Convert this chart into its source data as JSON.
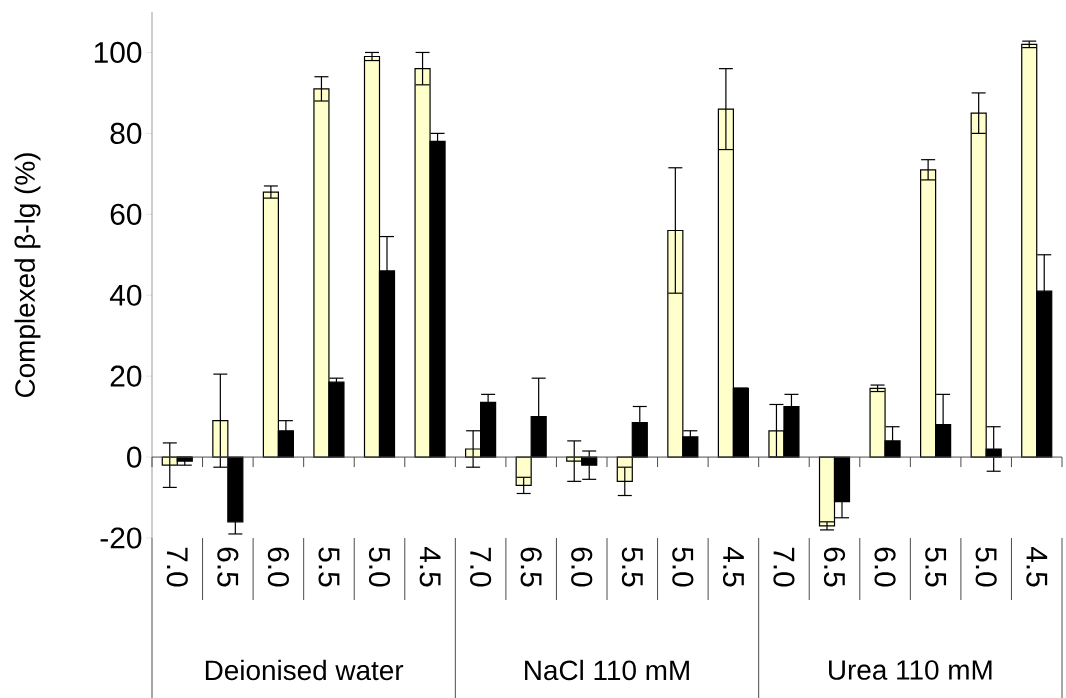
{
  "chart_data": {
    "type": "bar",
    "ylabel": "Complexed β-lg (%)",
    "categories": [
      "7.0",
      "6.5",
      "6.0",
      "5.5",
      "5.0",
      "4.5",
      "7.0",
      "6.5",
      "6.0",
      "5.5",
      "5.0",
      "4.5",
      "7.0",
      "6.5",
      "6.0",
      "5.5",
      "5.0",
      "4.5"
    ],
    "series": [
      {
        "color": "#ffffcc",
        "values": [
          -2,
          9,
          65.5,
          91,
          99,
          96,
          2,
          -7,
          -1,
          -6,
          56,
          86,
          6.5,
          -17,
          17,
          71,
          85,
          102
        ],
        "errors": [
          5.5,
          11.5,
          1.5,
          3,
          1,
          4,
          4.5,
          2,
          5,
          3.5,
          15.5,
          10,
          6.5,
          1,
          0.8,
          2.5,
          5,
          0.8
        ]
      },
      {
        "color": "#000000",
        "values": [
          -1,
          -16,
          6.5,
          18.5,
          46,
          78,
          13.5,
          10,
          -2,
          8.5,
          5,
          17,
          12.5,
          -11,
          4,
          8,
          2,
          41
        ],
        "errors": [
          1,
          3,
          2.5,
          1,
          8.5,
          2,
          2,
          9.5,
          3.5,
          4,
          1.5,
          0,
          3,
          4,
          3.5,
          7.5,
          5.5,
          9
        ]
      }
    ],
    "ylim": [
      -20,
      110
    ],
    "yticks": [
      -20,
      0,
      20,
      40,
      60,
      80,
      100
    ],
    "annotations": [
      "Deionised water",
      "NaCl 110 mM",
      "Urea 110 mM"
    ]
  }
}
